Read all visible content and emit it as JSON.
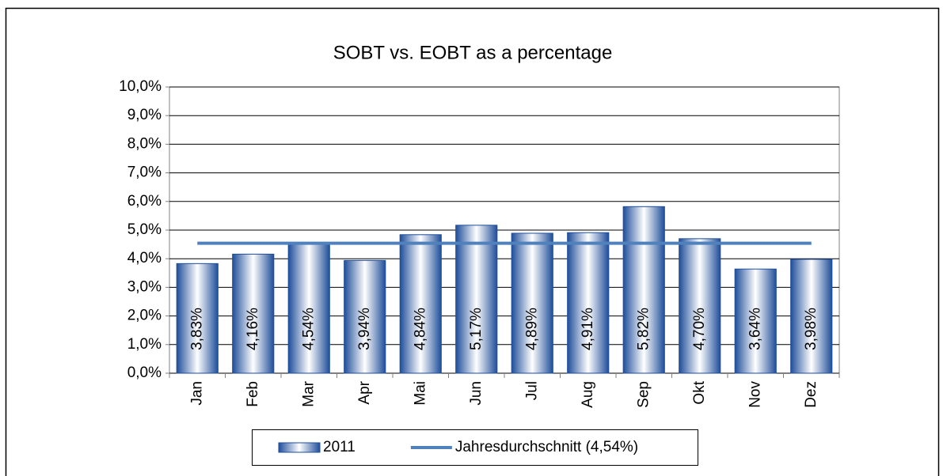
{
  "chart_data": {
    "type": "bar",
    "title": "SOBT vs. EOBT as a percentage",
    "categories": [
      "Jan",
      "Feb",
      "Mar",
      "Apr",
      "Mai",
      "Jun",
      "Jul",
      "Aug",
      "Sep",
      "Okt",
      "Nov",
      "Dez"
    ],
    "series": [
      {
        "name": "2011",
        "type": "bar",
        "color": "#1f4e9a",
        "values": [
          3.83,
          4.16,
          4.54,
          3.94,
          4.84,
          5.17,
          4.89,
          4.91,
          5.82,
          4.7,
          3.64,
          3.98
        ],
        "value_labels": [
          "3,83%",
          "4,16%",
          "4,54%",
          "3,94%",
          "4,84%",
          "5,17%",
          "4,89%",
          "4,91%",
          "5,82%",
          "4,70%",
          "3,64%",
          "3,98%"
        ]
      },
      {
        "name": "Jahresdurchschnitt (4,54%)",
        "type": "line",
        "color": "#4f81bd",
        "values": [
          4.54,
          4.54,
          4.54,
          4.54,
          4.54,
          4.54,
          4.54,
          4.54,
          4.54,
          4.54,
          4.54,
          4.54
        ]
      }
    ],
    "ylim": [
      0,
      10
    ],
    "yticks": [
      {
        "value": 0,
        "label": "0,0%"
      },
      {
        "value": 1,
        "label": "1,0%"
      },
      {
        "value": 2,
        "label": "2,0%"
      },
      {
        "value": 3,
        "label": "3,0%"
      },
      {
        "value": 4,
        "label": "4,0%"
      },
      {
        "value": 5,
        "label": "5,0%"
      },
      {
        "value": 6,
        "label": "6,0%"
      },
      {
        "value": 7,
        "label": "7,0%"
      },
      {
        "value": 8,
        "label": "8,0%"
      },
      {
        "value": 9,
        "label": "9,0%"
      },
      {
        "value": 10,
        "label": "10,0%"
      }
    ],
    "grid": true,
    "legend": "bottom"
  }
}
